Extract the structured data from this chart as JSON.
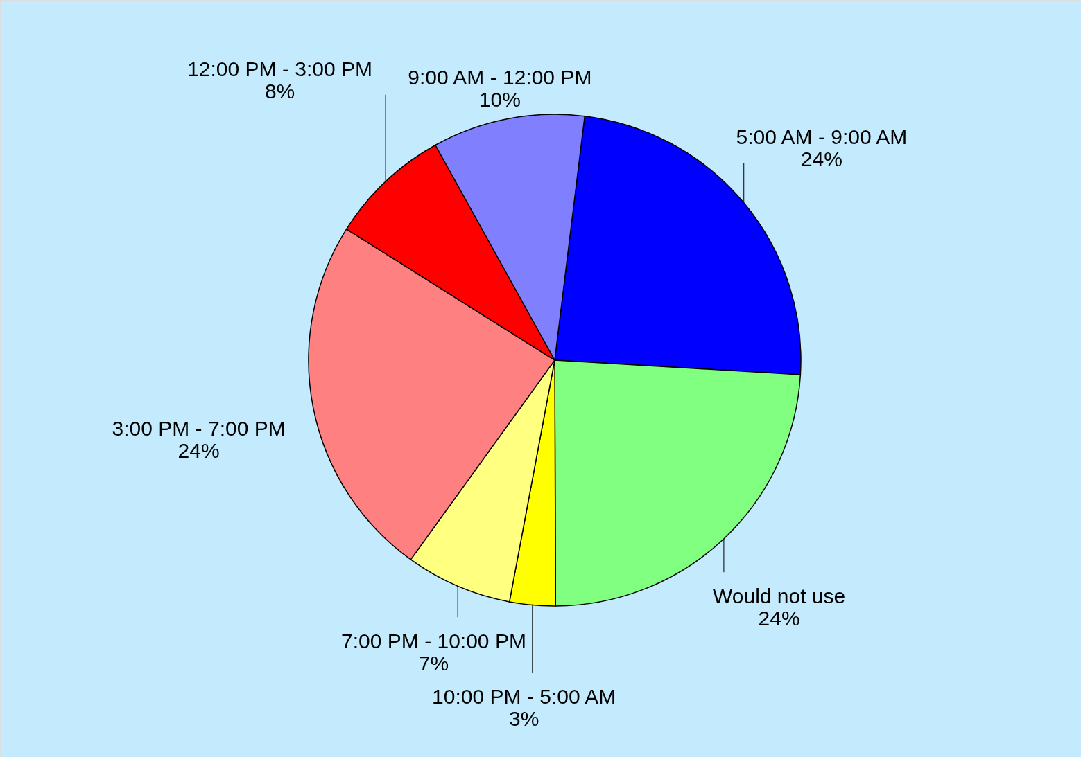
{
  "chart_data": {
    "type": "pie",
    "categories": [
      "5:00 AM - 9:00 AM",
      "Would not use",
      "10:00 PM - 5:00 AM",
      "7:00 PM - 10:00 PM",
      "3:00 PM - 7:00 PM",
      "12:00 PM - 3:00 PM",
      "9:00 AM - 12:00 PM"
    ],
    "values": [
      24,
      24,
      3,
      7,
      24,
      8,
      10
    ],
    "value_labels": [
      "24%",
      "24%",
      "3%",
      "7%",
      "24%",
      "8%",
      "10%"
    ],
    "colors": [
      "#0000ff",
      "#80ff80",
      "#ffff00",
      "#ffff80",
      "#ff8080",
      "#ff0000",
      "#8080ff"
    ]
  }
}
